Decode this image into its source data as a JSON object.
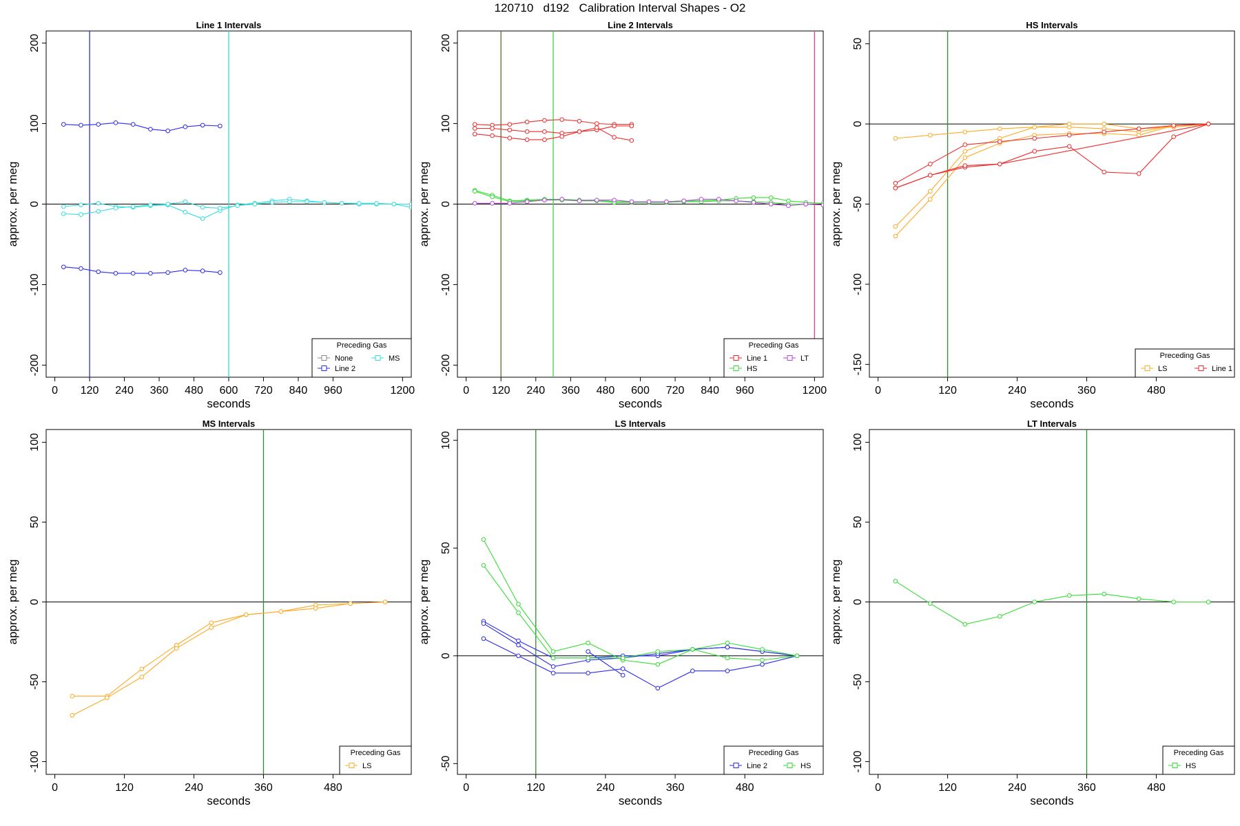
{
  "figure": {
    "title": "120710   d192   Calibration Interval Shapes - O2"
  },
  "colors": {
    "None": "#888888",
    "Line 1": "#ee2a2a",
    "Line 2": "#2a2aee",
    "HS": "#33dd33",
    "MS": "#33dddd",
    "LS": "#ffaa22",
    "LT": "#bb44dd"
  },
  "chart_data": [
    {
      "type": "line",
      "title": "Line 1 Intervals",
      "xlabel": "seconds",
      "ylabel": "approx. per meg",
      "xlim": [
        -30,
        1230
      ],
      "ylim": [
        -215,
        215
      ],
      "xticks": [
        0,
        120,
        240,
        360,
        480,
        600,
        720,
        840,
        960,
        1200
      ],
      "yticks": [
        -200,
        -100,
        0,
        100,
        200
      ],
      "hline": 0,
      "vlines": [
        {
          "x": 120,
          "color": "#2a2aee"
        },
        {
          "x": 600,
          "color": "#33dddd"
        }
      ],
      "legend": {
        "title": "Preceding Gas",
        "position": "bottom-right",
        "columns": 2,
        "entries": [
          "None",
          "Line 2",
          "MS"
        ]
      },
      "series": [
        {
          "name": "Line 2",
          "x": [
            30,
            90,
            150,
            210,
            270,
            330,
            390,
            450,
            510,
            570
          ],
          "values": [
            99,
            98,
            99,
            101,
            99,
            93,
            91,
            96,
            98,
            97
          ]
        },
        {
          "name": "Line 2",
          "x": [
            30,
            90,
            150,
            210,
            270,
            330,
            390,
            450,
            510,
            570
          ],
          "values": [
            -78,
            -80,
            -84,
            -86,
            -86,
            -86,
            -85,
            -82,
            -83,
            -85
          ]
        },
        {
          "name": "MS",
          "x": [
            30,
            90,
            150,
            210,
            270,
            330,
            390,
            450,
            510,
            570,
            630,
            690,
            750,
            810,
            870,
            930,
            990,
            1050,
            1110,
            1170,
            1230
          ],
          "values": [
            -3,
            -1,
            1,
            -3,
            -4,
            -2,
            -1,
            -10,
            -18,
            -8,
            -1,
            1,
            4,
            6,
            4,
            2,
            1,
            0,
            0,
            0,
            -4
          ]
        },
        {
          "name": "MS",
          "x": [
            30,
            90,
            150,
            210,
            270,
            330,
            390,
            450,
            510,
            570,
            630,
            690,
            750,
            810,
            870,
            930,
            990,
            1050,
            1110,
            1170,
            1230
          ],
          "values": [
            -12,
            -13,
            -9,
            -5,
            -3,
            -1,
            0,
            3,
            -4,
            -5,
            -2,
            0,
            2,
            3,
            3,
            2,
            1,
            1,
            1,
            0,
            0
          ]
        }
      ]
    },
    {
      "type": "line",
      "title": "Line 2 Intervals",
      "xlabel": "seconds",
      "ylabel": "approx. per meg",
      "xlim": [
        -30,
        1230
      ],
      "ylim": [
        -215,
        215
      ],
      "xticks": [
        0,
        120,
        240,
        360,
        480,
        600,
        720,
        840,
        960,
        1200
      ],
      "yticks": [
        -200,
        -100,
        0,
        100,
        200
      ],
      "hline": 0,
      "vlines": [
        {
          "x": 120,
          "color": "#556b2f"
        },
        {
          "x": 300,
          "color": "#33dd33"
        },
        {
          "x": 1200,
          "color": "#dd4488"
        }
      ],
      "legend": {
        "title": "Preceding Gas",
        "position": "bottom-right",
        "columns": 2,
        "entries": [
          "Line 1",
          "HS",
          "LT"
        ]
      },
      "series": [
        {
          "name": "Line 1",
          "x": [
            30,
            90,
            150,
            210,
            270,
            330,
            390,
            450,
            510,
            570
          ],
          "values": [
            99,
            98,
            99,
            102,
            104,
            105,
            103,
            100,
            99,
            99
          ]
        },
        {
          "name": "Line 1",
          "x": [
            30,
            90,
            150,
            210,
            270,
            330,
            390,
            450,
            510,
            570
          ],
          "values": [
            94,
            94,
            92,
            90,
            90,
            88,
            90,
            92,
            97,
            97
          ]
        },
        {
          "name": "Line 1",
          "x": [
            30,
            90,
            150,
            210,
            270,
            330,
            390,
            450,
            510,
            570
          ],
          "values": [
            87,
            85,
            82,
            80,
            80,
            84,
            90,
            95,
            83,
            79
          ]
        },
        {
          "name": "HS",
          "x": [
            30,
            90,
            150,
            210,
            270,
            330,
            390,
            450,
            510,
            570,
            630,
            690,
            750,
            810,
            870,
            930,
            990,
            1050,
            1110,
            1170,
            1230
          ],
          "values": [
            17,
            11,
            4,
            5,
            6,
            6,
            5,
            5,
            3,
            3,
            3,
            3,
            4,
            4,
            5,
            7,
            8,
            8,
            4,
            2,
            1
          ]
        },
        {
          "name": "HS",
          "x": [
            30,
            90,
            150,
            210,
            270,
            330,
            390,
            450,
            510,
            570,
            630,
            690,
            750,
            810,
            870,
            930,
            990,
            1050,
            1110,
            1170,
            1230
          ],
          "values": [
            16,
            9,
            3,
            4,
            5,
            5,
            4,
            4,
            2,
            2,
            2,
            2,
            3,
            3,
            4,
            4,
            3,
            2,
            0,
            0,
            -1
          ]
        },
        {
          "name": "LT",
          "x": [
            30,
            90,
            150,
            210,
            270,
            330,
            390,
            450,
            510,
            570,
            630,
            690,
            750,
            810,
            870,
            930,
            990,
            1050,
            1110,
            1170,
            1230
          ],
          "values": [
            1,
            1,
            1,
            3,
            5,
            6,
            4,
            5,
            5,
            3,
            3,
            3,
            4,
            6,
            6,
            4,
            2,
            0,
            -2,
            0,
            -1
          ]
        }
      ]
    },
    {
      "type": "line",
      "title": "HS Intervals",
      "xlabel": "seconds",
      "ylabel": "approx. per meg",
      "xlim": [
        -15,
        615
      ],
      "ylim": [
        -158,
        58
      ],
      "xticks": [
        0,
        120,
        240,
        360,
        480
      ],
      "yticks": [
        -150,
        -100,
        -50,
        0,
        50
      ],
      "hline": 0,
      "vlines": [
        {
          "x": 120,
          "color": "#2e8b2e"
        }
      ],
      "legend": {
        "title": "Preceding Gas",
        "position": "bottom-right",
        "columns": 2,
        "entries": [
          "LS",
          "Line 1"
        ]
      },
      "series": [
        {
          "name": "LS",
          "x": [
            30,
            90,
            150,
            210,
            270,
            330,
            390,
            450,
            510,
            570
          ],
          "values": [
            -9,
            -7,
            -5,
            -3,
            -2,
            -2,
            -3,
            -5,
            -1,
            0
          ]
        },
        {
          "name": "LS",
          "x": [
            30,
            90,
            150,
            210,
            270,
            330,
            390,
            450,
            510,
            570
          ],
          "values": [
            -64,
            -42,
            -17,
            -9,
            -2,
            0,
            0,
            -3,
            -2,
            0
          ]
        },
        {
          "name": "LS",
          "x": [
            30,
            90,
            150,
            210,
            270,
            330,
            390,
            450,
            510,
            570
          ],
          "values": [
            -70,
            -47,
            -21,
            -12,
            -7,
            -6,
            -6,
            -7,
            -1,
            0
          ]
        },
        {
          "name": "Line 1",
          "x": [
            30,
            90,
            150,
            210,
            270,
            330,
            390,
            450,
            510,
            570
          ],
          "values": [
            -37,
            -25,
            -13,
            -11,
            -9,
            -7,
            -5,
            -3,
            -1,
            0
          ]
        },
        {
          "name": "Line 1",
          "x": [
            30,
            90,
            150,
            210,
            570
          ],
          "values": [
            -40,
            -32,
            -27,
            -25,
            0
          ]
        },
        {
          "name": "Line 1",
          "x": [
            30,
            90,
            150,
            210,
            270,
            330,
            390,
            450,
            510,
            570
          ],
          "values": [
            -40,
            -32,
            -26,
            -25,
            -17,
            -14,
            -30,
            -31,
            -8,
            0
          ]
        }
      ]
    },
    {
      "type": "line",
      "title": "MS Intervals",
      "xlabel": "seconds",
      "ylabel": "approx. per meg",
      "xlim": [
        -15,
        615
      ],
      "ylim": [
        -108,
        108
      ],
      "xticks": [
        0,
        120,
        240,
        360,
        480
      ],
      "yticks": [
        -100,
        -50,
        0,
        50,
        100
      ],
      "hline": 0,
      "vlines": [
        {
          "x": 360,
          "color": "#2e8b2e"
        }
      ],
      "legend": {
        "title": "Preceding Gas",
        "position": "bottom-right",
        "columns": 1,
        "entries": [
          "LS"
        ]
      },
      "series": [
        {
          "name": "LS",
          "x": [
            30,
            90,
            150,
            210,
            270,
            330,
            390,
            450,
            510,
            570
          ],
          "values": [
            -59,
            -59,
            -42,
            -27,
            -13,
            -8,
            -6,
            -2,
            -1,
            0
          ]
        },
        {
          "name": "LS",
          "x": [
            30,
            90,
            150,
            210,
            270,
            330,
            390,
            450,
            510,
            570
          ],
          "values": [
            -71,
            -60,
            -47,
            -29,
            -16,
            -8,
            -6,
            -4,
            -1,
            0
          ]
        }
      ]
    },
    {
      "type": "line",
      "title": "LS Intervals",
      "xlabel": "seconds",
      "ylabel": "approx. per meg",
      "xlim": [
        -15,
        615
      ],
      "ylim": [
        -55,
        105
      ],
      "xticks": [
        0,
        120,
        240,
        360,
        480
      ],
      "yticks": [
        -50,
        0,
        50,
        100
      ],
      "hline": 0,
      "vlines": [
        {
          "x": 120,
          "color": "#2e8b2e"
        }
      ],
      "legend": {
        "title": "Preceding Gas",
        "position": "bottom-right",
        "columns": 2,
        "entries": [
          "Line 2",
          "HS"
        ]
      },
      "series": [
        {
          "name": "Line 2",
          "x": [
            30,
            90,
            150,
            210,
            270,
            330,
            390,
            450,
            510,
            570
          ],
          "values": [
            16,
            7,
            -1,
            -1,
            0,
            0,
            3,
            4,
            2,
            0
          ]
        },
        {
          "name": "Line 2",
          "x": [
            30,
            90,
            150,
            210,
            270,
            330,
            390,
            450,
            510,
            570
          ],
          "values": [
            15,
            5,
            -5,
            -2,
            -1,
            1,
            3,
            4,
            2,
            0
          ]
        },
        {
          "name": "Line 2",
          "x": [
            30,
            90,
            150,
            210,
            270,
            330,
            390,
            450,
            510,
            570
          ],
          "values": [
            8,
            0,
            -8,
            -8,
            -6,
            -15,
            -7,
            -7,
            -4,
            0
          ]
        },
        {
          "name": "Line 2",
          "x": [
            210,
            270
          ],
          "values": [
            2,
            -9
          ]
        },
        {
          "name": "HS",
          "x": [
            30,
            90,
            150,
            210,
            270,
            330,
            390,
            450,
            510,
            570
          ],
          "values": [
            54,
            24,
            2,
            6,
            -2,
            -4,
            3,
            6,
            3,
            0
          ]
        },
        {
          "name": "HS",
          "x": [
            30,
            90,
            150,
            210,
            270,
            330,
            390,
            450,
            510,
            570
          ],
          "values": [
            42,
            20,
            -1,
            -1,
            -1,
            2,
            3,
            -1,
            -2,
            0
          ]
        }
      ]
    },
    {
      "type": "line",
      "title": "LT Intervals",
      "xlabel": "seconds",
      "ylabel": "approx. per meg",
      "xlim": [
        -15,
        615
      ],
      "ylim": [
        -108,
        108
      ],
      "xticks": [
        0,
        120,
        240,
        360,
        480
      ],
      "yticks": [
        -100,
        -50,
        0,
        50,
        100
      ],
      "hline": 0,
      "vlines": [
        {
          "x": 360,
          "color": "#2e8b2e"
        }
      ],
      "legend": {
        "title": "Preceding Gas",
        "position": "bottom-right",
        "columns": 1,
        "entries": [
          "HS"
        ]
      },
      "series": [
        {
          "name": "HS",
          "x": [
            30,
            90,
            150,
            210,
            270,
            330,
            390,
            450,
            510,
            570
          ],
          "values": [
            13,
            -1,
            -14,
            -9,
            0,
            4,
            5,
            2,
            0,
            0
          ]
        }
      ]
    }
  ]
}
